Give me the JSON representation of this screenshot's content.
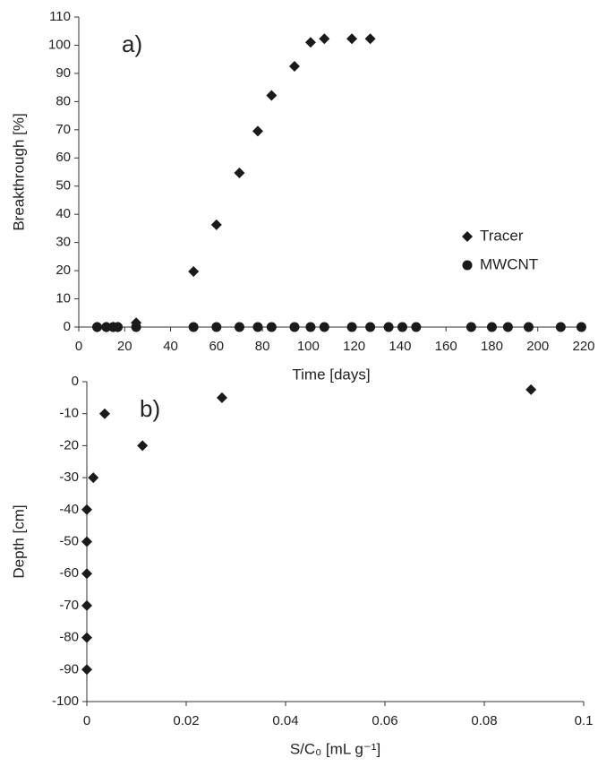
{
  "chart_data": [
    {
      "type": "scatter",
      "annotation": "a)",
      "xlabel": "Time [days]",
      "ylabel": "Breakthrough [%]",
      "xlim": [
        0,
        220
      ],
      "xticks": [
        0,
        20,
        40,
        60,
        80,
        100,
        120,
        140,
        160,
        180,
        200,
        220
      ],
      "ylim": [
        0,
        110
      ],
      "yticks": [
        0,
        10,
        20,
        30,
        40,
        50,
        60,
        70,
        80,
        90,
        100,
        110
      ],
      "legend": "center right",
      "series": [
        {
          "name": "Tracer",
          "marker": "diamond",
          "color": "#1a1a1a",
          "x": [
            8,
            12,
            15,
            17,
            25,
            50,
            60,
            70,
            78,
            84,
            94,
            101,
            107,
            119,
            127
          ],
          "values": [
            0,
            0,
            0,
            0,
            1.5,
            19.7,
            36.3,
            54.7,
            69.5,
            82.2,
            92.5,
            101,
            102.3,
            102.3,
            102.3
          ]
        },
        {
          "name": "MWCNT",
          "marker": "circle",
          "color": "#1a1a1a",
          "x": [
            8,
            12,
            15,
            17,
            25,
            50,
            60,
            70,
            78,
            84,
            94,
            101,
            107,
            119,
            127,
            135,
            141,
            147,
            171,
            180,
            187,
            196,
            210,
            219
          ],
          "values": [
            0,
            0,
            0,
            0,
            0,
            0,
            0,
            0,
            0,
            0,
            0,
            0,
            0,
            0,
            0,
            0,
            0,
            0,
            0,
            0,
            0,
            0,
            0,
            0
          ]
        }
      ]
    },
    {
      "type": "scatter",
      "annotation": "b)",
      "xlabel": "S/C₀ [mL g⁻¹]",
      "ylabel": "Depth [cm]",
      "xlim": [
        0,
        0.1
      ],
      "xticks": [
        0,
        0.02,
        0.04,
        0.06,
        0.08,
        0.1
      ],
      "ylim": [
        -100,
        0
      ],
      "yticks": [
        -100,
        -90,
        -80,
        -70,
        -60,
        -50,
        -40,
        -30,
        -20,
        -10,
        0
      ],
      "series": [
        {
          "marker": "diamond",
          "color": "#1a1a1a",
          "x": [
            0.0894,
            0.0272,
            0.0036,
            0.0112,
            0.0013,
            0,
            0,
            0,
            0,
            0,
            0
          ],
          "values": [
            -2.5,
            -5,
            -10,
            -20,
            -30,
            -40,
            -50,
            -60,
            -70,
            -80,
            -90
          ]
        }
      ]
    }
  ]
}
